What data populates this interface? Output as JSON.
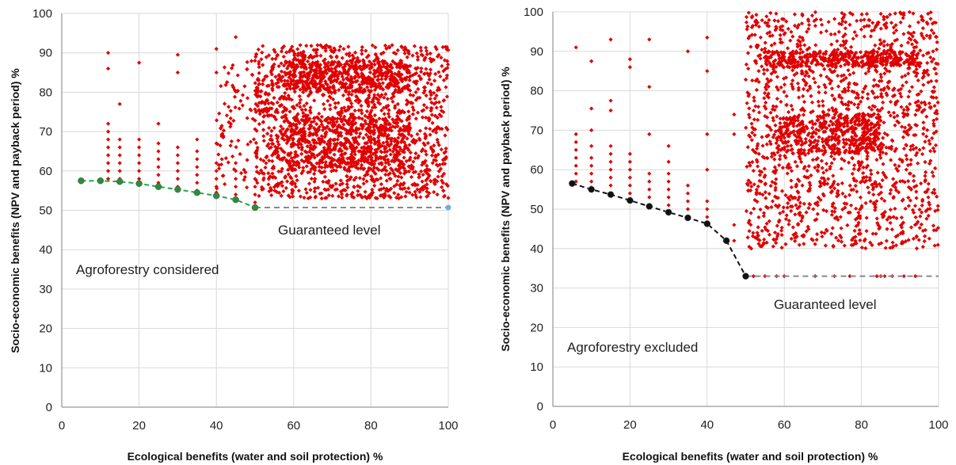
{
  "chart_data": [
    {
      "type": "scatter",
      "panel": "left",
      "xlabel": "Ecological benefits (water and soil protection) %",
      "ylabel": "Socio-economic benefits (NPV and payback period) %",
      "xlim": [
        0,
        100
      ],
      "ylim": [
        0,
        100
      ],
      "xticks": [
        "0",
        "20",
        "40",
        "60",
        "80",
        "100"
      ],
      "yticks": [
        "0",
        "10",
        "20",
        "30",
        "40",
        "50",
        "60",
        "70",
        "80",
        "90",
        "100"
      ],
      "grid": true,
      "colors": {
        "points": "#e00000",
        "frontier": "#1fa847",
        "frontier_marker": "#2e8b3c",
        "guaranteed": "#888888",
        "guaranteed_end": "#7aaad8"
      },
      "annotations": [
        "Guaranteed level",
        "Agroforestry considered"
      ],
      "series": [
        {
          "role": "pareto_frontier",
          "style": "dashed",
          "points": [
            [
              5,
              57.5
            ],
            [
              10,
              57.5
            ],
            [
              15,
              57.3
            ],
            [
              20,
              56.8
            ],
            [
              25,
              56
            ],
            [
              30,
              55.3
            ],
            [
              35,
              54.5
            ],
            [
              40,
              53.7
            ],
            [
              45,
              52.7
            ],
            [
              50,
              50.7
            ]
          ]
        },
        {
          "role": "guaranteed_level",
          "style": "dashed",
          "points": [
            [
              50,
              50.7
            ],
            [
              100,
              50.7
            ]
          ]
        },
        {
          "role": "solutions",
          "columns": [
            {
              "x": 12,
              "y": [
                58,
                60,
                62,
                64,
                66,
                68,
                70,
                72,
                86,
                90
              ]
            },
            {
              "x": 15,
              "y": [
                58,
                60,
                62,
                64,
                66,
                68,
                77
              ]
            },
            {
              "x": 20,
              "y": [
                58,
                60,
                62,
                64,
                66,
                68,
                87.5
              ]
            },
            {
              "x": 25,
              "y": [
                57,
                59,
                61,
                63,
                65,
                67,
                72
              ]
            },
            {
              "x": 30,
              "y": [
                56,
                58,
                60,
                62,
                64,
                66,
                85,
                89.5
              ]
            },
            {
              "x": 35,
              "y": [
                55,
                57,
                59,
                61,
                63,
                65,
                68
              ]
            },
            {
              "x": 40,
              "y": [
                54.5,
                56,
                58,
                60,
                62,
                67,
                85,
                91
              ]
            },
            {
              "x": 45,
              "y": [
                54,
                56,
                58,
                60,
                62,
                94
              ]
            },
            {
              "x": 50,
              "y": [
                52,
                54,
                56,
                58,
                88
              ]
            }
          ],
          "clusters": [
            {
              "x": [
                50,
                100
              ],
              "y": [
                53,
                92
              ],
              "count": 1500
            },
            {
              "x": [
                58,
                90
              ],
              "y": [
                60,
                74
              ],
              "count": 500
            },
            {
              "x": [
                58,
                90
              ],
              "y": [
                80,
                88
              ],
              "count": 400
            },
            {
              "x": [
                40,
                58
              ],
              "y": [
                55,
                88
              ],
              "count": 140
            }
          ]
        }
      ]
    },
    {
      "type": "scatter",
      "panel": "right",
      "xlabel": "Ecological benefits (water and soil protection) %",
      "ylabel": "Socio-economic benefits (NPV and payback period) %",
      "xlim": [
        0,
        100
      ],
      "ylim": [
        0,
        100
      ],
      "xticks": [
        "0",
        "20",
        "40",
        "60",
        "80",
        "100"
      ],
      "yticks": [
        "0",
        "10",
        "20",
        "30",
        "40",
        "50",
        "60",
        "70",
        "80",
        "90",
        "100"
      ],
      "grid": true,
      "colors": {
        "points": "#e00000",
        "frontier": "#111111",
        "frontier_marker": "#111111",
        "guaranteed": "#888888"
      },
      "annotations": [
        "Guaranteed level",
        "Agroforestry excluded"
      ],
      "series": [
        {
          "role": "pareto_frontier",
          "style": "dashed",
          "points": [
            [
              5,
              56.5
            ],
            [
              10,
              55
            ],
            [
              15,
              53.7
            ],
            [
              20,
              52.2
            ],
            [
              25,
              50.7
            ],
            [
              30,
              49.2
            ],
            [
              35,
              47.8
            ],
            [
              40,
              46.3
            ],
            [
              45,
              42
            ],
            [
              50,
              33
            ]
          ]
        },
        {
          "role": "guaranteed_level",
          "style": "dashed",
          "points": [
            [
              50,
              33
            ],
            [
              100,
              33
            ]
          ]
        },
        {
          "role": "solutions",
          "columns": [
            {
              "x": 6,
              "y": [
                57,
                59,
                61,
                63,
                65,
                67,
                69,
                91
              ]
            },
            {
              "x": 10,
              "y": [
                55.5,
                57,
                59,
                61,
                63,
                66,
                70,
                75.5,
                87.5
              ]
            },
            {
              "x": 15,
              "y": [
                54,
                56,
                58,
                60,
                62,
                64,
                66,
                75,
                77.5,
                93
              ]
            },
            {
              "x": 20,
              "y": [
                52.5,
                54,
                56,
                58,
                60,
                62,
                64,
                86,
                88
              ]
            },
            {
              "x": 25,
              "y": [
                51,
                53,
                55,
                57,
                59,
                69,
                81,
                93
              ]
            },
            {
              "x": 30,
              "y": [
                49.5,
                51,
                53,
                55,
                57,
                59,
                62,
                66
              ]
            },
            {
              "x": 35,
              "y": [
                48,
                50,
                52,
                54,
                56,
                90
              ]
            },
            {
              "x": 40,
              "y": [
                46.5,
                48,
                50,
                52,
                60,
                69,
                85,
                93.5
              ]
            },
            {
              "x": 47,
              "y": [
                42,
                46,
                69,
                74
              ]
            },
            {
              "x": 53,
              "y": [
                42.5,
                44,
                62,
                66
              ]
            }
          ],
          "guaranteed_points_x": [
            52,
            55,
            58,
            60,
            68,
            73,
            77,
            84,
            85,
            86,
            88,
            91,
            94
          ],
          "clusters": [
            {
              "x": [
                50,
                100
              ],
              "y": [
                40,
                100
              ],
              "count": 1500
            },
            {
              "x": [
                55,
                95
              ],
              "y": [
                86,
                90
              ],
              "count": 350
            },
            {
              "x": [
                58,
                85
              ],
              "y": [
                64,
                74
              ],
              "count": 380
            }
          ]
        }
      ]
    }
  ]
}
